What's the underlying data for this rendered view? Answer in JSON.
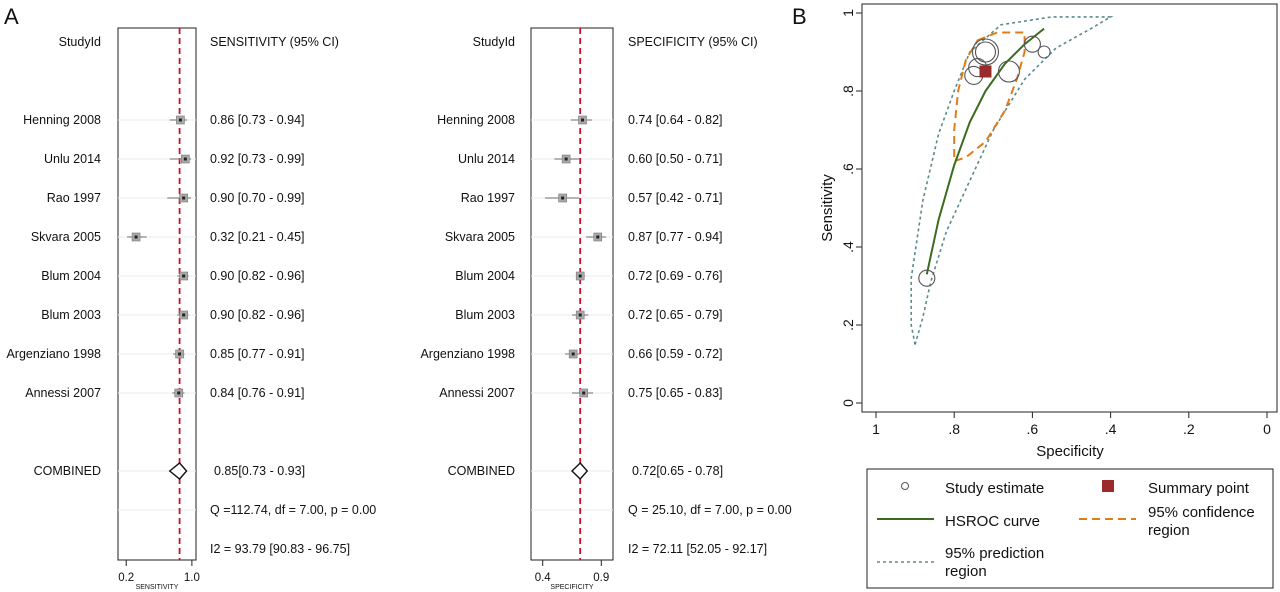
{
  "panels": {
    "a_label": "A",
    "b_label": "B"
  },
  "forest": {
    "studies": [
      "Henning 2008",
      "Unlu 2014",
      "Rao 1997",
      "Skvara 2005",
      "Blum 2004",
      "Blum 2003",
      "Argenziano 1998",
      "Annessi 2007"
    ],
    "sensitivity": {
      "id_header": "StudyId",
      "header": "SENSITIVITY (95% CI)",
      "est": [
        0.86,
        0.92,
        0.9,
        0.32,
        0.9,
        0.9,
        0.85,
        0.84
      ],
      "lo": [
        0.73,
        0.73,
        0.7,
        0.21,
        0.82,
        0.82,
        0.77,
        0.76
      ],
      "hi": [
        0.94,
        0.99,
        0.99,
        0.45,
        0.96,
        0.96,
        0.91,
        0.91
      ],
      "ci_text": [
        "0.86 [0.73 - 0.94]",
        "0.92 [0.73 - 0.99]",
        "0.90 [0.70 - 0.99]",
        "0.32 [0.21 - 0.45]",
        "0.90 [0.82 - 0.96]",
        "0.90 [0.82 - 0.96]",
        "0.85 [0.77 - 0.91]",
        "0.84 [0.76 - 0.91]"
      ],
      "combined_label": "COMBINED",
      "combined": {
        "est": 0.85,
        "lo": 0.73,
        "hi": 0.93
      },
      "combined_text": "0.85[0.73 - 0.93]",
      "q_text": "Q =112.74, df = 7.00, p =  0.00",
      "i2_text": "I2 = 93.79 [90.83 - 96.75]",
      "axis_ticks": [
        {
          "v": 0.2,
          "label": "0.2"
        },
        {
          "v": 1.0,
          "label": "1.0"
        }
      ],
      "axis_title": "SENSITIVITY",
      "xlim": [
        0.1,
        1.05
      ],
      "ref_line": 0.85
    },
    "specificity": {
      "id_header": "StudyId",
      "header": "SPECIFICITY (95% CI)",
      "est": [
        0.74,
        0.6,
        0.57,
        0.87,
        0.72,
        0.72,
        0.66,
        0.75
      ],
      "lo": [
        0.64,
        0.5,
        0.42,
        0.77,
        0.69,
        0.65,
        0.59,
        0.65
      ],
      "hi": [
        0.82,
        0.71,
        0.71,
        0.94,
        0.76,
        0.79,
        0.72,
        0.83
      ],
      "ci_text": [
        "0.74 [0.64 - 0.82]",
        "0.60 [0.50 - 0.71]",
        "0.57 [0.42 - 0.71]",
        "0.87 [0.77 - 0.94]",
        "0.72 [0.69 - 0.76]",
        "0.72 [0.65 - 0.79]",
        "0.66 [0.59 - 0.72]",
        "0.75 [0.65 - 0.83]"
      ],
      "combined_label": "COMBINED",
      "combined": {
        "est": 0.72,
        "lo": 0.65,
        "hi": 0.78
      },
      "combined_text": "0.72[0.65 - 0.78]",
      "q_text": "Q = 25.10, df = 7.00, p =  0.00",
      "i2_text": "I2 = 72.11 [52.05 - 92.17]",
      "axis_ticks": [
        {
          "v": 0.4,
          "label": "0.4"
        },
        {
          "v": 0.9,
          "label": "0.9"
        }
      ],
      "axis_title": "SPECIFICITY",
      "xlim": [
        0.3,
        1.0
      ],
      "ref_line": 0.72
    }
  },
  "chart_data": [
    {
      "type": "scatter",
      "title": "",
      "xlabel": "SENSITIVITY",
      "categories": [
        "Henning 2008",
        "Unlu 2014",
        "Rao 1997",
        "Skvara 2005",
        "Blum 2004",
        "Blum 2003",
        "Argenziano 1998",
        "Annessi 2007",
        "COMBINED"
      ],
      "series": [
        {
          "name": "SENSITIVITY (95% CI)",
          "values": [
            0.86,
            0.92,
            0.9,
            0.32,
            0.9,
            0.9,
            0.85,
            0.84,
            0.85
          ]
        }
      ]
    },
    {
      "type": "scatter",
      "title": "",
      "xlabel": "SPECIFICITY",
      "categories": [
        "Henning 2008",
        "Unlu 2014",
        "Rao 1997",
        "Skvara 2005",
        "Blum 2004",
        "Blum 2003",
        "Argenziano 1998",
        "Annessi 2007",
        "COMBINED"
      ],
      "series": [
        {
          "name": "SPECIFICITY (95% CI)",
          "values": [
            0.74,
            0.6,
            0.57,
            0.87,
            0.72,
            0.72,
            0.66,
            0.75,
            0.72
          ]
        }
      ]
    },
    {
      "type": "scatter",
      "title": "",
      "xlabel": "Specificity",
      "ylabel": "Sensitivity",
      "xlim": [
        1,
        0
      ],
      "ylim": [
        0,
        1
      ],
      "x_ticks": [
        "1",
        ".8",
        ".6",
        ".4",
        ".2",
        "0"
      ],
      "y_ticks": [
        "0",
        ".2",
        ".4",
        ".6",
        ".8",
        "1"
      ],
      "study_estimates": [
        {
          "spec": 0.74,
          "sens": 0.86,
          "weight": 0.6
        },
        {
          "spec": 0.6,
          "sens": 0.92,
          "weight": 0.5
        },
        {
          "spec": 0.57,
          "sens": 0.9,
          "weight": 0.3
        },
        {
          "spec": 0.87,
          "sens": 0.32,
          "weight": 0.5
        },
        {
          "spec": 0.72,
          "sens": 0.9,
          "weight": 1.0
        },
        {
          "spec": 0.72,
          "sens": 0.9,
          "weight": 0.7
        },
        {
          "spec": 0.66,
          "sens": 0.85,
          "weight": 0.75
        },
        {
          "spec": 0.75,
          "sens": 0.84,
          "weight": 0.6
        }
      ],
      "summary_point": {
        "spec": 0.72,
        "sens": 0.85
      },
      "hsroc_curve": [
        [
          0.87,
          0.33
        ],
        [
          0.84,
          0.47
        ],
        [
          0.8,
          0.61
        ],
        [
          0.76,
          0.72
        ],
        [
          0.72,
          0.8
        ],
        [
          0.67,
          0.87
        ],
        [
          0.62,
          0.92
        ],
        [
          0.57,
          0.96
        ]
      ],
      "confidence_region": [
        [
          0.74,
          0.93
        ],
        [
          0.69,
          0.95
        ],
        [
          0.62,
          0.95
        ],
        [
          0.62,
          0.9
        ],
        [
          0.64,
          0.83
        ],
        [
          0.67,
          0.75
        ],
        [
          0.72,
          0.67
        ],
        [
          0.77,
          0.63
        ],
        [
          0.8,
          0.62
        ],
        [
          0.8,
          0.7
        ],
        [
          0.79,
          0.8
        ],
        [
          0.77,
          0.88
        ],
        [
          0.74,
          0.93
        ]
      ],
      "prediction_region": [
        [
          0.9,
          0.15
        ],
        [
          0.91,
          0.2
        ],
        [
          0.91,
          0.32
        ],
        [
          0.88,
          0.52
        ],
        [
          0.84,
          0.69
        ],
        [
          0.8,
          0.8
        ],
        [
          0.76,
          0.9
        ],
        [
          0.68,
          0.97
        ],
        [
          0.55,
          0.99
        ],
        [
          0.4,
          0.99
        ],
        [
          0.45,
          0.96
        ],
        [
          0.54,
          0.91
        ],
        [
          0.62,
          0.83
        ],
        [
          0.7,
          0.7
        ],
        [
          0.76,
          0.57
        ],
        [
          0.82,
          0.44
        ],
        [
          0.86,
          0.31
        ],
        [
          0.88,
          0.22
        ],
        [
          0.9,
          0.15
        ]
      ],
      "legend": {
        "items": [
          "Study estimate",
          "Summary point",
          "HSROC curve",
          "95% confidence region",
          "95% prediction region"
        ],
        "position": "bottom"
      },
      "colors": {
        "hsroc": "#3b6b1e",
        "confidence": "#e07b1a",
        "prediction": "#5b8a8a",
        "summary": "#9b2a2a",
        "refline": "#c8102e",
        "study": "#555555"
      }
    }
  ],
  "legend_text": {
    "study": "Study estimate",
    "summary": "Summary point",
    "hsroc": "HSROC curve",
    "conf_line1": "95% confidence",
    "conf_line2": "region",
    "pred_line1": "95% prediction",
    "pred_line2": "region"
  }
}
